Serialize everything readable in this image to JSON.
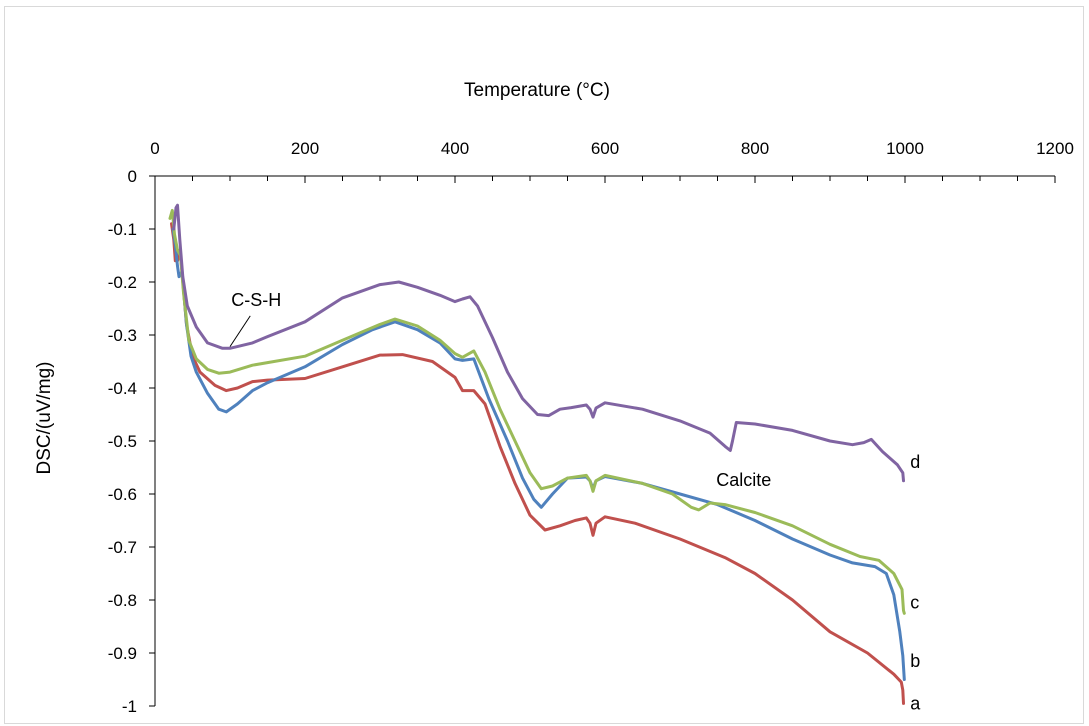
{
  "chart_data": {
    "type": "line",
    "xlabel": "Temperature (°C)",
    "ylabel": "DSC/(uV/mg)",
    "xlim": [
      0,
      1200
    ],
    "ylim": [
      -1,
      0
    ],
    "x_ticks": [
      "0",
      "200",
      "400",
      "600",
      "800",
      "1000",
      "1200"
    ],
    "y_ticks": [
      "0",
      "-0.1",
      "-0.2",
      "-0.3",
      "-0.4",
      "-0.5",
      "-0.6",
      "-0.7",
      "-0.8",
      "-0.9",
      "-1"
    ],
    "x_axis_position": "top",
    "grid": false,
    "annotations": [
      {
        "text": "C-S-H",
        "x": 135,
        "y": -0.245,
        "pointer_to": [
          100,
          -0.322
        ]
      },
      {
        "text": "Calcite",
        "x": 785,
        "y": -0.585
      }
    ],
    "series": [
      {
        "name": "a",
        "color": "#c0504d",
        "points": [
          [
            22,
            -0.09
          ],
          [
            25,
            -0.12
          ],
          [
            27,
            -0.16
          ],
          [
            30,
            -0.16
          ],
          [
            33,
            -0.14
          ],
          [
            36,
            -0.18
          ],
          [
            42,
            -0.28
          ],
          [
            50,
            -0.34
          ],
          [
            60,
            -0.37
          ],
          [
            80,
            -0.395
          ],
          [
            95,
            -0.405
          ],
          [
            110,
            -0.4
          ],
          [
            130,
            -0.388
          ],
          [
            150,
            -0.385
          ],
          [
            200,
            -0.382
          ],
          [
            250,
            -0.36
          ],
          [
            300,
            -0.338
          ],
          [
            330,
            -0.337
          ],
          [
            370,
            -0.35
          ],
          [
            400,
            -0.38
          ],
          [
            410,
            -0.405
          ],
          [
            425,
            -0.405
          ],
          [
            440,
            -0.43
          ],
          [
            460,
            -0.51
          ],
          [
            480,
            -0.58
          ],
          [
            500,
            -0.64
          ],
          [
            520,
            -0.668
          ],
          [
            540,
            -0.66
          ],
          [
            560,
            -0.65
          ],
          [
            575,
            -0.645
          ],
          [
            580,
            -0.655
          ],
          [
            584,
            -0.678
          ],
          [
            588,
            -0.655
          ],
          [
            600,
            -0.643
          ],
          [
            640,
            -0.655
          ],
          [
            700,
            -0.685
          ],
          [
            760,
            -0.72
          ],
          [
            800,
            -0.75
          ],
          [
            850,
            -0.8
          ],
          [
            900,
            -0.86
          ],
          [
            950,
            -0.9
          ],
          [
            985,
            -0.94
          ],
          [
            995,
            -0.955
          ],
          [
            997,
            -0.97
          ],
          [
            998,
            -0.995
          ]
        ]
      },
      {
        "name": "b",
        "color": "#4f81bd",
        "points": [
          [
            24,
            -0.1
          ],
          [
            27,
            -0.13
          ],
          [
            30,
            -0.17
          ],
          [
            32,
            -0.19
          ],
          [
            36,
            -0.18
          ],
          [
            42,
            -0.28
          ],
          [
            48,
            -0.34
          ],
          [
            55,
            -0.37
          ],
          [
            70,
            -0.41
          ],
          [
            85,
            -0.44
          ],
          [
            95,
            -0.445
          ],
          [
            110,
            -0.43
          ],
          [
            130,
            -0.405
          ],
          [
            150,
            -0.39
          ],
          [
            200,
            -0.36
          ],
          [
            250,
            -0.318
          ],
          [
            290,
            -0.29
          ],
          [
            320,
            -0.275
          ],
          [
            350,
            -0.29
          ],
          [
            380,
            -0.315
          ],
          [
            400,
            -0.345
          ],
          [
            410,
            -0.348
          ],
          [
            425,
            -0.345
          ],
          [
            445,
            -0.42
          ],
          [
            470,
            -0.5
          ],
          [
            490,
            -0.57
          ],
          [
            505,
            -0.61
          ],
          [
            515,
            -0.625
          ],
          [
            530,
            -0.6
          ],
          [
            550,
            -0.57
          ],
          [
            575,
            -0.568
          ],
          [
            580,
            -0.575
          ],
          [
            584,
            -0.59
          ],
          [
            588,
            -0.575
          ],
          [
            600,
            -0.567
          ],
          [
            650,
            -0.58
          ],
          [
            700,
            -0.6
          ],
          [
            750,
            -0.62
          ],
          [
            800,
            -0.65
          ],
          [
            850,
            -0.685
          ],
          [
            900,
            -0.715
          ],
          [
            930,
            -0.73
          ],
          [
            960,
            -0.737
          ],
          [
            975,
            -0.75
          ],
          [
            985,
            -0.79
          ],
          [
            993,
            -0.86
          ],
          [
            997,
            -0.905
          ],
          [
            999,
            -0.95
          ]
        ]
      },
      {
        "name": "c",
        "color": "#9bbb59",
        "points": [
          [
            20,
            -0.08
          ],
          [
            23,
            -0.065
          ],
          [
            26,
            -0.11
          ],
          [
            30,
            -0.14
          ],
          [
            34,
            -0.15
          ],
          [
            38,
            -0.22
          ],
          [
            45,
            -0.31
          ],
          [
            55,
            -0.345
          ],
          [
            70,
            -0.365
          ],
          [
            85,
            -0.372
          ],
          [
            100,
            -0.37
          ],
          [
            130,
            -0.357
          ],
          [
            150,
            -0.352
          ],
          [
            200,
            -0.34
          ],
          [
            250,
            -0.31
          ],
          [
            300,
            -0.28
          ],
          [
            320,
            -0.27
          ],
          [
            350,
            -0.283
          ],
          [
            380,
            -0.31
          ],
          [
            400,
            -0.335
          ],
          [
            410,
            -0.342
          ],
          [
            425,
            -0.33
          ],
          [
            440,
            -0.37
          ],
          [
            460,
            -0.44
          ],
          [
            480,
            -0.5
          ],
          [
            500,
            -0.56
          ],
          [
            515,
            -0.59
          ],
          [
            530,
            -0.585
          ],
          [
            550,
            -0.57
          ],
          [
            575,
            -0.565
          ],
          [
            580,
            -0.575
          ],
          [
            584,
            -0.595
          ],
          [
            588,
            -0.575
          ],
          [
            600,
            -0.565
          ],
          [
            650,
            -0.58
          ],
          [
            690,
            -0.6
          ],
          [
            715,
            -0.625
          ],
          [
            725,
            -0.63
          ],
          [
            740,
            -0.617
          ],
          [
            760,
            -0.62
          ],
          [
            800,
            -0.635
          ],
          [
            850,
            -0.66
          ],
          [
            900,
            -0.695
          ],
          [
            940,
            -0.718
          ],
          [
            965,
            -0.725
          ],
          [
            985,
            -0.75
          ],
          [
            996,
            -0.78
          ],
          [
            998,
            -0.82
          ],
          [
            999,
            -0.825
          ]
        ]
      },
      {
        "name": "d",
        "color": "#8064a2",
        "points": [
          [
            25,
            -0.1
          ],
          [
            28,
            -0.06
          ],
          [
            30,
            -0.055
          ],
          [
            33,
            -0.12
          ],
          [
            37,
            -0.19
          ],
          [
            43,
            -0.245
          ],
          [
            55,
            -0.285
          ],
          [
            70,
            -0.315
          ],
          [
            90,
            -0.325
          ],
          [
            100,
            -0.325
          ],
          [
            130,
            -0.315
          ],
          [
            150,
            -0.303
          ],
          [
            200,
            -0.275
          ],
          [
            250,
            -0.23
          ],
          [
            300,
            -0.205
          ],
          [
            325,
            -0.2
          ],
          [
            350,
            -0.21
          ],
          [
            380,
            -0.225
          ],
          [
            400,
            -0.237
          ],
          [
            410,
            -0.232
          ],
          [
            420,
            -0.228
          ],
          [
            430,
            -0.245
          ],
          [
            450,
            -0.305
          ],
          [
            470,
            -0.37
          ],
          [
            490,
            -0.42
          ],
          [
            510,
            -0.45
          ],
          [
            525,
            -0.452
          ],
          [
            540,
            -0.44
          ],
          [
            555,
            -0.437
          ],
          [
            575,
            -0.432
          ],
          [
            580,
            -0.44
          ],
          [
            584,
            -0.455
          ],
          [
            588,
            -0.438
          ],
          [
            600,
            -0.428
          ],
          [
            650,
            -0.44
          ],
          [
            700,
            -0.462
          ],
          [
            740,
            -0.485
          ],
          [
            760,
            -0.51
          ],
          [
            767,
            -0.518
          ],
          [
            770,
            -0.5
          ],
          [
            775,
            -0.465
          ],
          [
            800,
            -0.468
          ],
          [
            850,
            -0.48
          ],
          [
            900,
            -0.5
          ],
          [
            930,
            -0.507
          ],
          [
            945,
            -0.503
          ],
          [
            955,
            -0.497
          ],
          [
            970,
            -0.52
          ],
          [
            990,
            -0.545
          ],
          [
            997,
            -0.56
          ],
          [
            998,
            -0.575
          ]
        ]
      }
    ],
    "end_labels": [
      {
        "text": "a",
        "series": "a",
        "x": 1007,
        "y": -0.995
      },
      {
        "text": "b",
        "series": "b",
        "x": 1007,
        "y": -0.915
      },
      {
        "text": "c",
        "series": "c",
        "x": 1007,
        "y": -0.805
      },
      {
        "text": "d",
        "series": "d",
        "x": 1007,
        "y": -0.54
      }
    ]
  }
}
